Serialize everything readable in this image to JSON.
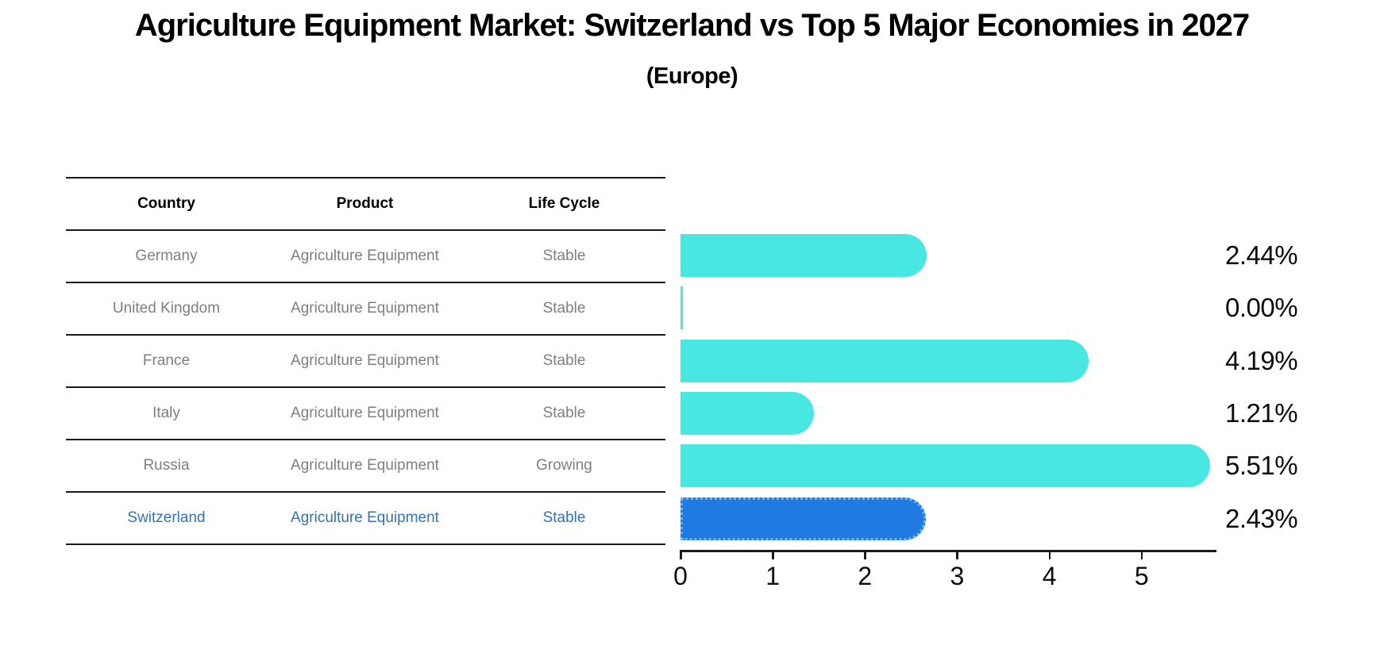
{
  "title": "Agriculture Equipment Market: Switzerland vs Top 5 Major Economies in 2027",
  "subtitle": "(Europe)",
  "table": {
    "headers": [
      "Country",
      "Product",
      "Life Cycle"
    ],
    "rows": [
      {
        "country": "Germany",
        "product": "Agriculture Equipment",
        "life_cycle": "Stable",
        "highlight": false
      },
      {
        "country": "United Kingdom",
        "product": "Agriculture Equipment",
        "life_cycle": "Stable",
        "highlight": false
      },
      {
        "country": "France",
        "product": "Agriculture Equipment",
        "life_cycle": "Stable",
        "highlight": false
      },
      {
        "country": "Italy",
        "product": "Agriculture Equipment",
        "life_cycle": "Stable",
        "highlight": false
      },
      {
        "country": "Russia",
        "product": "Agriculture Equipment",
        "life_cycle": "Growing",
        "highlight": false
      },
      {
        "country": "Switzerland",
        "product": "Agriculture Equipment",
        "life_cycle": "Stable",
        "highlight": true
      }
    ]
  },
  "chart_data": {
    "type": "bar",
    "orientation": "horizontal",
    "title": "Agriculture Equipment Market: Switzerland vs Top 5 Major Economies in 2027 (Europe)",
    "categories": [
      "Germany",
      "United Kingdom",
      "France",
      "Italy",
      "Russia",
      "Switzerland"
    ],
    "values": [
      2.44,
      0.0,
      4.19,
      1.21,
      5.51,
      2.43
    ],
    "value_labels": [
      "2.44%",
      "0.00%",
      "4.19%",
      "1.21%",
      "5.51%",
      "2.43%"
    ],
    "x_ticks": [
      0,
      1,
      2,
      3,
      4,
      5
    ],
    "xlim": [
      0,
      5.82
    ],
    "grid": false,
    "legend": "none",
    "bar_color": "#48e7e1",
    "highlight_color": "#1f7be1",
    "highlight_index": 5
  },
  "colors": {
    "bar_cyan": "#48e7e1",
    "bar_blue": "#1f7be1",
    "bar_blue_border": "#6fb3f2",
    "table_line": "#1a1a1a",
    "row_text": "#7f7f7f",
    "highlight_text": "#3273b6",
    "label_text": "#0d0d0d"
  }
}
